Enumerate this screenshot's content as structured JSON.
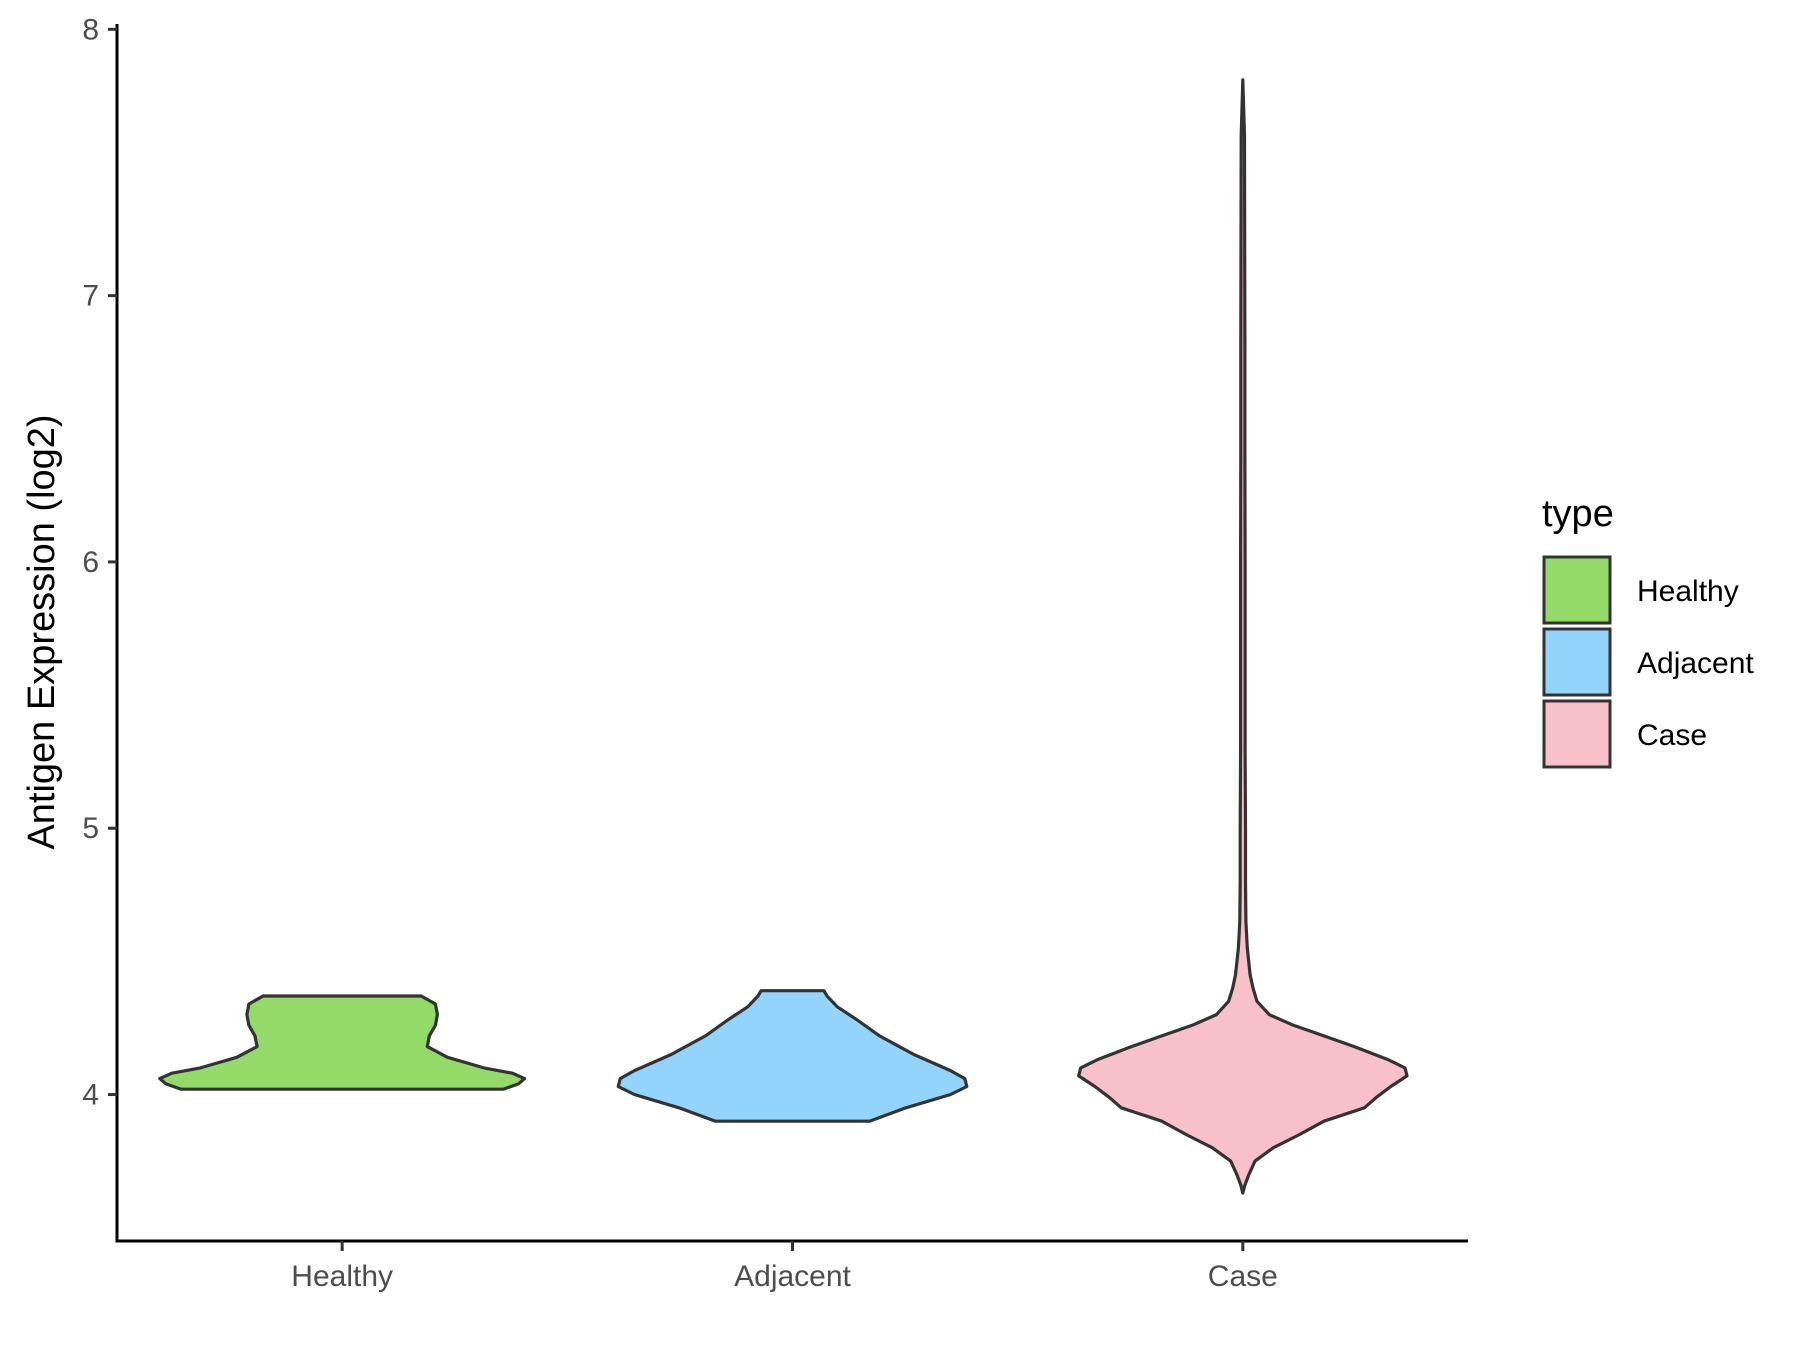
{
  "chart_data": {
    "type": "violin",
    "categories": [
      "Healthy",
      "Adjacent",
      "Case"
    ],
    "ylabel": "Antigen Expression (log2)",
    "xlabel": "",
    "ylim": [
      3.45,
      8.02
    ],
    "yticks": [
      4,
      5,
      6,
      7,
      8
    ],
    "grid": false,
    "legend": {
      "title": "type",
      "position": "right",
      "entries": [
        {
          "label": "Healthy",
          "color": "#93da69"
        },
        {
          "label": "Adjacent",
          "color": "#93d4fd"
        },
        {
          "label": "Case",
          "color": "#f8c0cb"
        }
      ]
    },
    "series": [
      {
        "category": "Healthy",
        "color": "#93da69",
        "y_min": 4.02,
        "y_max": 4.37,
        "profile": [
          [
            4.02,
            0.795
          ],
          [
            4.04,
            0.87
          ],
          [
            4.06,
            0.9
          ],
          [
            4.08,
            0.84
          ],
          [
            4.1,
            0.7
          ],
          [
            4.14,
            0.52
          ],
          [
            4.18,
            0.42
          ],
          [
            4.22,
            0.43
          ],
          [
            4.26,
            0.46
          ],
          [
            4.3,
            0.47
          ],
          [
            4.34,
            0.46
          ],
          [
            4.37,
            0.39
          ]
        ]
      },
      {
        "category": "Adjacent",
        "color": "#93d4fd",
        "y_min": 3.9,
        "y_max": 4.39,
        "profile": [
          [
            3.9,
            0.38
          ],
          [
            3.95,
            0.56
          ],
          [
            4.0,
            0.78
          ],
          [
            4.03,
            0.86
          ],
          [
            4.06,
            0.85
          ],
          [
            4.09,
            0.78
          ],
          [
            4.15,
            0.6
          ],
          [
            4.22,
            0.43
          ],
          [
            4.28,
            0.32
          ],
          [
            4.33,
            0.22
          ],
          [
            4.37,
            0.17
          ],
          [
            4.39,
            0.155
          ]
        ]
      },
      {
        "category": "Case",
        "color": "#f8c0cb",
        "y_min": 3.63,
        "y_max": 7.81,
        "profile": [
          [
            3.63,
            0.0
          ],
          [
            3.66,
            0.01
          ],
          [
            3.7,
            0.03
          ],
          [
            3.75,
            0.06
          ],
          [
            3.8,
            0.15
          ],
          [
            3.85,
            0.28
          ],
          [
            3.9,
            0.4
          ],
          [
            3.95,
            0.6
          ],
          [
            3.99,
            0.66
          ],
          [
            4.03,
            0.73
          ],
          [
            4.07,
            0.81
          ],
          [
            4.1,
            0.8
          ],
          [
            4.13,
            0.72
          ],
          [
            4.18,
            0.55
          ],
          [
            4.22,
            0.4
          ],
          [
            4.26,
            0.25
          ],
          [
            4.3,
            0.13
          ],
          [
            4.35,
            0.07
          ],
          [
            4.4,
            0.05
          ],
          [
            4.45,
            0.036
          ],
          [
            4.55,
            0.022
          ],
          [
            4.65,
            0.015
          ],
          [
            4.8,
            0.013
          ],
          [
            5.0,
            0.013
          ],
          [
            5.3,
            0.011
          ],
          [
            5.6,
            0.011
          ],
          [
            6.0,
            0.011
          ],
          [
            6.4,
            0.01
          ],
          [
            6.8,
            0.01
          ],
          [
            7.2,
            0.009
          ],
          [
            7.6,
            0.008
          ],
          [
            7.81,
            0.0
          ]
        ]
      }
    ]
  }
}
